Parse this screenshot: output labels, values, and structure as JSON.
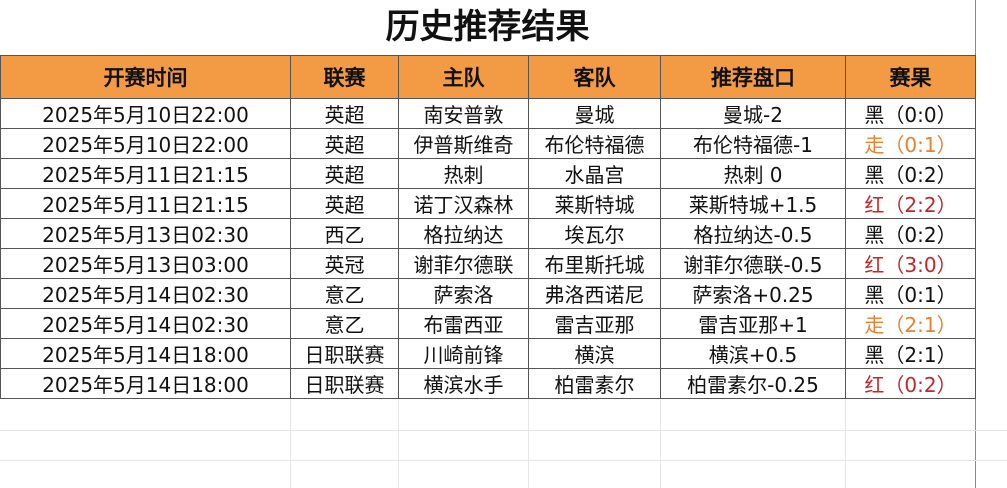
{
  "title": "历史推荐结果",
  "headers": [
    "开赛时间",
    "联赛",
    "主队",
    "客队",
    "推荐盘口",
    "赛果"
  ],
  "colors": {
    "header_bg": "#F39A45",
    "黑": "#111111",
    "走": "#E8822E",
    "红": "#C0282A"
  },
  "rows": [
    {
      "time": "2025年5月10日22:00",
      "league": "英超",
      "home": "南安普敦",
      "away": "曼城",
      "pick": "曼城-2",
      "result": "黑",
      "score": "（0:0）"
    },
    {
      "time": "2025年5月10日22:00",
      "league": "英超",
      "home": "伊普斯维奇",
      "away": "布伦特福德",
      "pick": "布伦特福德-1",
      "result": "走",
      "score": "（0:1）"
    },
    {
      "time": "2025年5月11日21:15",
      "league": "英超",
      "home": "热刺",
      "away": "水晶宫",
      "pick": "热刺 0",
      "result": "黑",
      "score": "（0:2）"
    },
    {
      "time": "2025年5月11日21:15",
      "league": "英超",
      "home": "诺丁汉森林",
      "away": "莱斯特城",
      "pick": "莱斯特城+1.5",
      "result": "红",
      "score": "（2:2）"
    },
    {
      "time": "2025年5月13日02:30",
      "league": "西乙",
      "home": "格拉纳达",
      "away": "埃瓦尔",
      "pick": "格拉纳达-0.5",
      "result": "黑",
      "score": "（0:2）"
    },
    {
      "time": "2025年5月13日03:00",
      "league": "英冠",
      "home": "谢菲尔德联",
      "away": "布里斯托城",
      "pick": "谢菲尔德联-0.5",
      "result": "红",
      "score": "（3:0）"
    },
    {
      "time": "2025年5月14日02:30",
      "league": "意乙",
      "home": "萨索洛",
      "away": "弗洛西诺尼",
      "pick": "萨索洛+0.25",
      "result": "黑",
      "score": "（0:1）"
    },
    {
      "time": "2025年5月14日02:30",
      "league": "意乙",
      "home": "布雷西亚",
      "away": "雷吉亚那",
      "pick": "雷吉亚那+1",
      "result": "走",
      "score": "（2:1）"
    },
    {
      "time": "2025年5月14日18:00",
      "league": "日职联赛",
      "home": "川崎前锋",
      "away": "横滨",
      "pick": "横滨+0.5",
      "result": "黑",
      "score": "（2:1）"
    },
    {
      "time": "2025年5月14日18:00",
      "league": "日职联赛",
      "home": "横滨水手",
      "away": "柏雷素尔",
      "pick": "柏雷素尔-0.25",
      "result": "红",
      "score": "（0:2）"
    }
  ]
}
